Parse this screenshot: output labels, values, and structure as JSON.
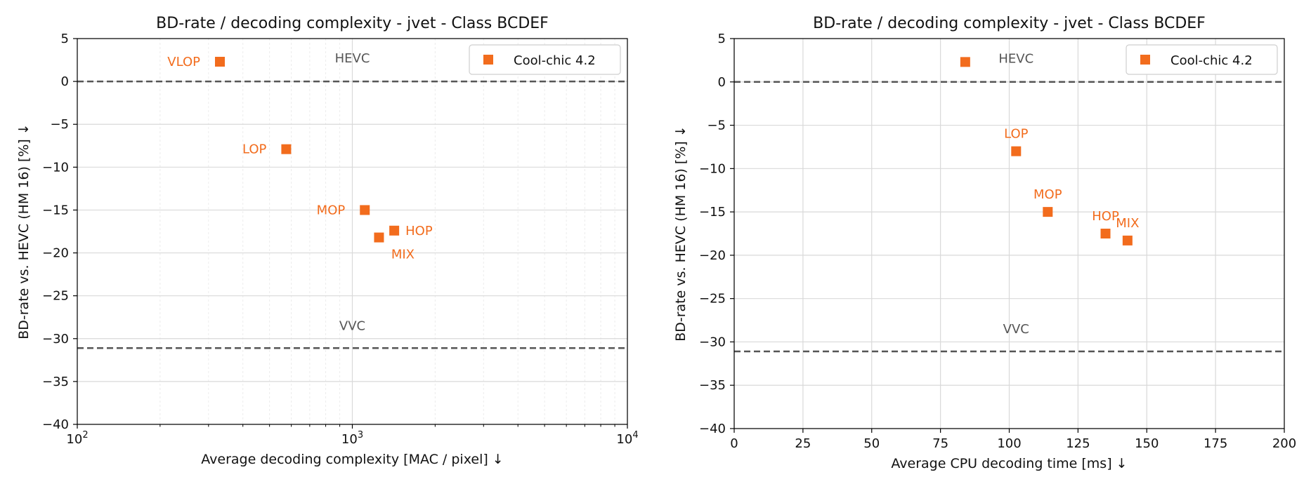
{
  "colors": {
    "series": "#f26c1d",
    "reference": "#555555",
    "grid": "#d9d9d9",
    "grid_minor": "#ececec"
  },
  "chart_data": [
    {
      "type": "scatter",
      "title": "BD-rate / decoding complexity - jvet - Class BCDEF",
      "xlabel": "Average decoding complexity [MAC / pixel]  ↓",
      "ylabel": "BD-rate vs. HEVC (HM 16) [%]  ↓",
      "xscale": "log",
      "xlim": [
        100,
        10000
      ],
      "ylim": [
        -40,
        5
      ],
      "xticks": [
        {
          "value": 100,
          "base": "10",
          "exp": "2"
        },
        {
          "value": 1000,
          "base": "10",
          "exp": "3"
        },
        {
          "value": 10000,
          "base": "10",
          "exp": "4"
        }
      ],
      "yticks": [
        5,
        0,
        -5,
        -10,
        -15,
        -20,
        -25,
        -30,
        -35,
        -40
      ],
      "grid": true,
      "legend": {
        "position": "top-right",
        "entries": [
          "Cool-chic 4.2"
        ]
      },
      "series": [
        {
          "name": "Cool-chic 4.2",
          "points": [
            {
              "label": "VLOP",
              "x": 330,
              "y": 2.3,
              "label_pos": "left"
            },
            {
              "label": "LOP",
              "x": 575,
              "y": -7.9,
              "label_pos": "left"
            },
            {
              "label": "MOP",
              "x": 1110,
              "y": -15.0,
              "label_pos": "left"
            },
            {
              "label": "HOP",
              "x": 1420,
              "y": -17.4,
              "label_pos": "right"
            },
            {
              "label": "MIX",
              "x": 1250,
              "y": -18.2,
              "label_pos": "below"
            }
          ]
        }
      ],
      "references": [
        {
          "label": "HEVC",
          "y": 0,
          "label_x": 1000,
          "label_y": 2.2
        },
        {
          "label": "VVC",
          "y": -31.1,
          "label_x": 1000,
          "label_y": -29.0
        }
      ]
    },
    {
      "type": "scatter",
      "title": "BD-rate / decoding complexity - jvet - Class BCDEF",
      "xlabel": "Average CPU decoding time [ms]  ↓",
      "ylabel": "BD-rate vs. HEVC (HM 16) [%]  ↓",
      "xscale": "linear",
      "xlim": [
        0,
        200
      ],
      "ylim": [
        -40,
        5
      ],
      "xticks": [
        {
          "value": 0,
          "text": "0"
        },
        {
          "value": 25,
          "text": "25"
        },
        {
          "value": 50,
          "text": "50"
        },
        {
          "value": 75,
          "text": "75"
        },
        {
          "value": 100,
          "text": "100"
        },
        {
          "value": 125,
          "text": "125"
        },
        {
          "value": 150,
          "text": "150"
        },
        {
          "value": 175,
          "text": "175"
        },
        {
          "value": 200,
          "text": "200"
        }
      ],
      "yticks": [
        5,
        0,
        -5,
        -10,
        -15,
        -20,
        -25,
        -30,
        -35,
        -40
      ],
      "grid": true,
      "legend": {
        "position": "top-right",
        "entries": [
          "Cool-chic 4.2"
        ]
      },
      "series": [
        {
          "name": "Cool-chic 4.2",
          "points": [
            {
              "label": "",
              "x": 84,
              "y": 2.3,
              "label_pos": "none"
            },
            {
              "label": "LOP",
              "x": 102.5,
              "y": -8.0,
              "label_pos": "above"
            },
            {
              "label": "MOP",
              "x": 114,
              "y": -15.0,
              "label_pos": "above"
            },
            {
              "label": "HOP",
              "x": 135,
              "y": -17.5,
              "label_pos": "above"
            },
            {
              "label": "MIX",
              "x": 143,
              "y": -18.3,
              "label_pos": "above"
            }
          ]
        }
      ],
      "references": [
        {
          "label": "HEVC",
          "y": 0,
          "label_x": 102.5,
          "label_y": 2.2
        },
        {
          "label": "VVC",
          "y": -31.1,
          "label_x": 102.5,
          "label_y": -29.0
        }
      ]
    }
  ]
}
